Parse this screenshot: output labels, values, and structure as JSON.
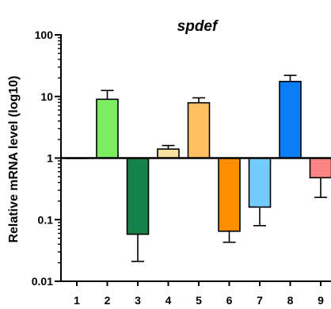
{
  "chart_data": {
    "type": "bar",
    "title": "spdef",
    "xlabel": "",
    "ylabel": "Relative mRNA level (log10)",
    "yscale": "log",
    "ylim": [
      0.01,
      100
    ],
    "baseline": 1,
    "yticks": [
      {
        "value": 0.01,
        "label": "0.01"
      },
      {
        "value": 0.1,
        "label": "0.1"
      },
      {
        "value": 1,
        "label": "1"
      },
      {
        "value": 10,
        "label": "10"
      },
      {
        "value": 100,
        "label": "100"
      }
    ],
    "categories": [
      "1",
      "2",
      "3",
      "4",
      "5",
      "6",
      "7",
      "8",
      "9"
    ],
    "values": [
      1.0,
      9.0,
      0.058,
      1.4,
      7.9,
      0.065,
      0.16,
      17.5,
      0.48
    ],
    "error": [
      0.0,
      3.5,
      0.037,
      0.2,
      1.6,
      0.022,
      0.08,
      4.5,
      0.25
    ],
    "colors": [
      "#ffffff",
      "#7cec61",
      "#15824a",
      "#f6dfa3",
      "#fec061",
      "#ff8d00",
      "#72ccfd",
      "#0a7ff5",
      "#fd8585"
    ],
    "grid": false,
    "legend": "none"
  }
}
